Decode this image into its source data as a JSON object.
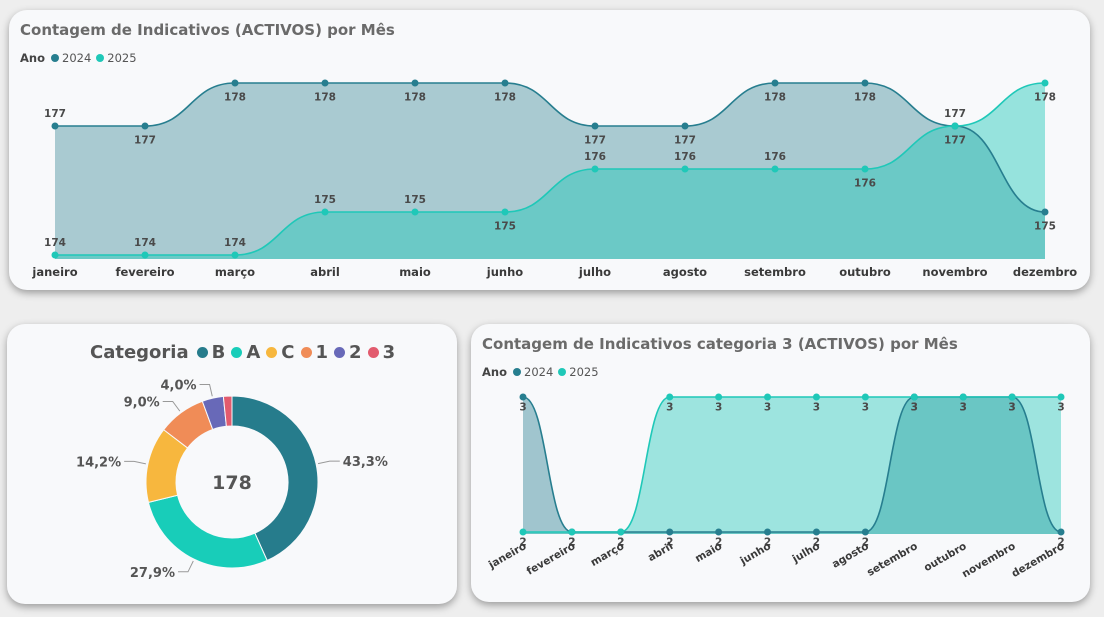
{
  "colors": {
    "y2024": "#277e8f",
    "y2025": "#1fc8b8",
    "B": "#267c8c",
    "A": "#18cdb9",
    "C": "#f7b73e",
    "one": "#f08c57",
    "two": "#6869b8",
    "three": "#e25b6e"
  },
  "top": {
    "title": "Contagem de Indicativos (ACTIVOS) por Mês",
    "legend": {
      "title": "Ano",
      "items": [
        {
          "label": "2024",
          "color": "#277e8f"
        },
        {
          "label": "2025",
          "color": "#1fc8b8"
        }
      ]
    }
  },
  "donut": {
    "legend": {
      "title": "Categoria",
      "items": [
        {
          "label": "B",
          "color": "#267c8c"
        },
        {
          "label": "A",
          "color": "#18cdb9"
        },
        {
          "label": "C",
          "color": "#f7b73e"
        },
        {
          "label": "1",
          "color": "#f08c57"
        },
        {
          "label": "2",
          "color": "#6869b8"
        },
        {
          "label": "3",
          "color": "#e25b6e"
        }
      ]
    }
  },
  "bottom": {
    "title": "Contagem de Indicativos categoria 3 (ACTIVOS) por Mês",
    "legend": {
      "title": "Ano",
      "items": [
        {
          "label": "2024",
          "color": "#277e8f"
        },
        {
          "label": "2025",
          "color": "#1fc8b8"
        }
      ]
    }
  },
  "chart_data": [
    {
      "type": "area",
      "title": "Contagem de Indicativos (ACTIVOS) por Mês",
      "categories": [
        "janeiro",
        "fevereiro",
        "março",
        "abril",
        "maio",
        "junho",
        "julho",
        "agosto",
        "setembro",
        "outubro",
        "novembro",
        "dezembro"
      ],
      "series": [
        {
          "name": "2024",
          "values": [
            177,
            177,
            178,
            178,
            178,
            178,
            177,
            177,
            178,
            178,
            177,
            175
          ]
        },
        {
          "name": "2025",
          "values": [
            174,
            174,
            174,
            175,
            175,
            175,
            176,
            176,
            176,
            176,
            177,
            178
          ]
        }
      ],
      "legend_title": "Ano"
    },
    {
      "type": "pie",
      "title": "Categoria",
      "center_label": "178",
      "categories": [
        "B",
        "A",
        "C",
        "1",
        "2",
        "3"
      ],
      "values": [
        43.3,
        27.9,
        14.2,
        9.0,
        4.0,
        1.6
      ],
      "labels": [
        "43,3%",
        "27,9%",
        "14,2%",
        "9,0%",
        "4,0%",
        ""
      ]
    },
    {
      "type": "area",
      "title": "Contagem de Indicativos categoria 3 (ACTIVOS) por Mês",
      "categories": [
        "janeiro",
        "fevereiro",
        "março",
        "abril",
        "maio",
        "junho",
        "julho",
        "agosto",
        "setembro",
        "outubro",
        "novembro",
        "dezembro"
      ],
      "series": [
        {
          "name": "2024",
          "values": [
            3,
            2,
            2,
            2,
            2,
            2,
            2,
            2,
            3,
            3,
            3,
            2
          ]
        },
        {
          "name": "2025",
          "values": [
            2,
            2,
            2,
            3,
            3,
            3,
            3,
            3,
            3,
            3,
            3,
            3
          ]
        }
      ],
      "legend_title": "Ano"
    }
  ]
}
